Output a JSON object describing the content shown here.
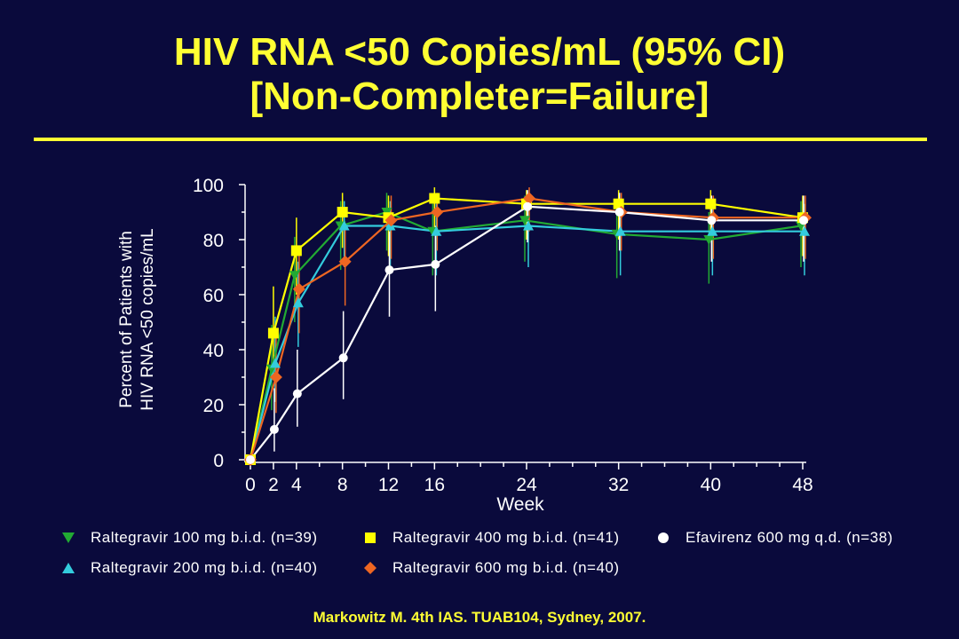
{
  "title_line1": "HIV RNA <50 Copies/mL (95% CI)",
  "title_line2": "[Non-Completer=Failure]",
  "citation": "Markowitz M. 4th IAS. TUAB104, Sydney, 2007.",
  "chart_data": {
    "type": "line",
    "xlabel": "Week",
    "ylabel_line1": "Percent of Patients with",
    "ylabel_line2": "HIV RNA <50 copies/mL",
    "xlim": [
      0,
      48
    ],
    "ylim": [
      0,
      100
    ],
    "x_ticks": [
      0,
      2,
      4,
      8,
      12,
      16,
      24,
      32,
      40,
      48
    ],
    "y_ticks": [
      0,
      20,
      40,
      60,
      80,
      100
    ],
    "grid": false,
    "legend_position": "bottom",
    "series": [
      {
        "name": "Raltegravir 100 mg b.i.d. (n=39)",
        "color": "#22aa33",
        "marker": "triangle-down",
        "x": [
          0,
          2,
          4,
          8,
          12,
          16,
          24,
          32,
          40,
          48
        ],
        "y": [
          0,
          33,
          67,
          85,
          90,
          83,
          87,
          82,
          80,
          85
        ],
        "ci_low": [
          0,
          18,
          50,
          69,
          76,
          67,
          72,
          66,
          64,
          70
        ],
        "ci_high": [
          0,
          49,
          81,
          94,
          97,
          93,
          96,
          93,
          90,
          94
        ]
      },
      {
        "name": "Raltegravir 200 mg b.i.d. (n=40)",
        "color": "#33ccdd",
        "marker": "triangle-up",
        "x": [
          0,
          2,
          4,
          8,
          12,
          16,
          24,
          32,
          40,
          48
        ],
        "y": [
          0,
          35,
          57,
          85,
          85,
          83,
          85,
          83,
          83,
          83
        ],
        "ci_low": [
          0,
          21,
          41,
          70,
          70,
          67,
          70,
          67,
          67,
          67
        ],
        "ci_high": [
          0,
          52,
          72,
          94,
          94,
          93,
          94,
          93,
          93,
          93
        ]
      },
      {
        "name": "Raltegravir 400 mg b.i.d. (n=41)",
        "color": "#ffff00",
        "marker": "square",
        "x": [
          0,
          2,
          4,
          8,
          12,
          16,
          24,
          32,
          40,
          48
        ],
        "y": [
          0,
          46,
          76,
          90,
          88,
          95,
          93,
          93,
          93,
          88
        ],
        "ci_low": [
          0,
          31,
          60,
          77,
          74,
          83,
          80,
          80,
          80,
          74
        ],
        "ci_high": [
          0,
          63,
          88,
          97,
          96,
          99,
          98,
          98,
          98,
          96
        ]
      },
      {
        "name": "Raltegravir 600 mg b.i.d. (n=40)",
        "color": "#ee6622",
        "marker": "diamond",
        "x": [
          0,
          2,
          4,
          8,
          12,
          16,
          24,
          32,
          40,
          48
        ],
        "y": [
          0,
          30,
          62,
          72,
          87,
          90,
          95,
          90,
          88,
          88
        ],
        "ci_low": [
          0,
          17,
          46,
          56,
          73,
          76,
          83,
          76,
          73,
          73
        ],
        "ci_high": [
          0,
          47,
          77,
          85,
          96,
          97,
          99,
          97,
          96,
          96
        ]
      },
      {
        "name": "Efavirenz  600 mg q.d. (n=38)",
        "color": "#ffffff",
        "marker": "circle",
        "x": [
          0,
          2,
          4,
          8,
          12,
          16,
          24,
          32,
          40,
          48
        ],
        "y": [
          0,
          11,
          24,
          37,
          69,
          71,
          92,
          90,
          87,
          87
        ],
        "ci_low": [
          0,
          3,
          12,
          22,
          52,
          54,
          79,
          76,
          72,
          72
        ],
        "ci_high": [
          0,
          26,
          40,
          54,
          83,
          85,
          98,
          97,
          96,
          96
        ]
      }
    ]
  }
}
